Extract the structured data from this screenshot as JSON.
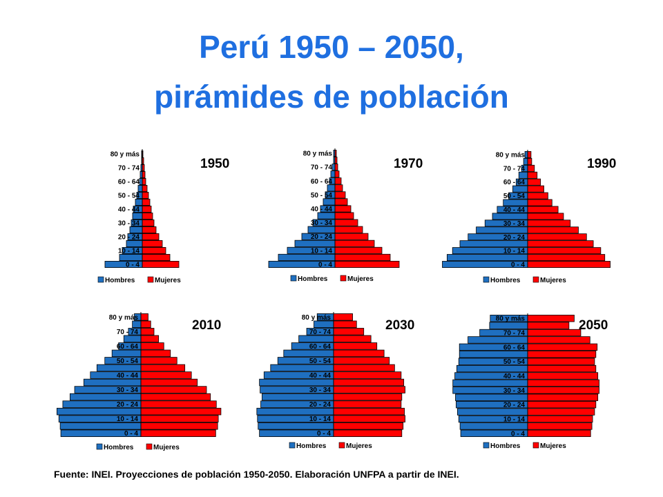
{
  "title_line1": "Perú 1950 – 2050,",
  "title_line2": "pirámides de población",
  "source": "Fuente: INEI. Proyecciones de población 1950-2050. Elaboración UNFPA a partir de INEI.",
  "colors": {
    "hombres": "#1f6fc0",
    "mujeres": "#ff0000",
    "title": "#1f6fe0"
  },
  "chart_data": [
    {
      "type": "bar",
      "title": "1950",
      "legend": [
        "Hombres",
        "Mujeres"
      ],
      "tick_labels": [
        "0 -  4",
        "10 - 14",
        "20 - 24",
        "30 - 34",
        "40 - 44",
        "50 - 54",
        "60 - 64",
        "70 - 74",
        "80 y más"
      ],
      "series": [
        {
          "name": "Hombres",
          "values": [
            54,
            33,
            29,
            23,
            21,
            18,
            16,
            14,
            13,
            10,
            8,
            6,
            4,
            3,
            2,
            1,
            1
          ]
        },
        {
          "name": "Mujeres",
          "values": [
            53,
            40,
            34,
            29,
            24,
            20,
            17,
            15,
            13,
            11,
            9,
            7,
            5,
            4,
            3,
            2,
            1
          ]
        }
      ]
    },
    {
      "type": "bar",
      "title": "1970",
      "legend": [
        "Hombres",
        "Mujeres"
      ],
      "tick_labels": [
        "0 -  4",
        "10 - 14",
        "20 - 24",
        "30 - 34",
        "40 - 44",
        "50 - 54",
        "60 - 64",
        "70 - 74",
        "80 y más"
      ],
      "series": [
        {
          "name": "Hombres",
          "values": [
            96,
            82,
            69,
            58,
            48,
            39,
            32,
            25,
            21,
            17,
            14,
            11,
            8,
            6,
            4,
            2,
            2
          ]
        },
        {
          "name": "Mujeres",
          "values": [
            93,
            80,
            68,
            57,
            48,
            40,
            33,
            27,
            23,
            18,
            15,
            11,
            9,
            6,
            4,
            3,
            2
          ]
        }
      ]
    },
    {
      "type": "bar",
      "title": "1990",
      "legend": [
        "Hombres",
        "Mujeres"
      ],
      "tick_labels": [
        "0 -  4",
        "10 - 14",
        "20 - 24",
        "30 - 34",
        "40 - 44",
        "50 - 54",
        "60 - 64",
        "70 - 74",
        "80 y más"
      ],
      "series": [
        {
          "name": "Hombres",
          "values": [
            126,
            119,
            111,
            100,
            88,
            76,
            63,
            52,
            45,
            36,
            28,
            22,
            17,
            13,
            9,
            6,
            4
          ]
        },
        {
          "name": "Mujeres",
          "values": [
            122,
            114,
            108,
            97,
            87,
            75,
            63,
            53,
            45,
            36,
            30,
            24,
            19,
            14,
            10,
            6,
            5
          ]
        }
      ]
    },
    {
      "type": "bar",
      "title": "2010",
      "legend": [
        "Hombres",
        "Mujeres"
      ],
      "tick_labels": [
        "0 -  4",
        "10 - 14",
        "20 - 24",
        "30 - 34",
        "40 - 44",
        "50 - 54",
        "60 - 64",
        "70 - 74",
        "80 y más"
      ],
      "series": [
        {
          "name": "Hombres",
          "values": [
            122,
            123,
            125,
            128,
            119,
            108,
            101,
            87,
            77,
            67,
            55,
            44,
            34,
            26,
            19,
            13,
            10
          ]
        },
        {
          "name": "Mujeres",
          "values": [
            114,
            117,
            118,
            122,
            115,
            106,
            100,
            86,
            77,
            67,
            55,
            45,
            35,
            27,
            20,
            15,
            11
          ]
        }
      ]
    },
    {
      "type": "bar",
      "title": "2030",
      "legend": [
        "Hombres",
        "Mujeres"
      ],
      "tick_labels": [
        "0 -  4",
        "10 - 14",
        "20 - 24",
        "30 - 34",
        "40 - 44",
        "50 - 54",
        "60 - 64",
        "70 - 74",
        "80 y más"
      ],
      "series": [
        {
          "name": "Hombres",
          "values": [
            113,
            115,
            116,
            117,
            111,
            109,
            112,
            113,
            106,
            96,
            85,
            76,
            64,
            53,
            41,
            30,
            25
          ]
        },
        {
          "name": "Mujeres",
          "values": [
            104,
            106,
            109,
            108,
            103,
            104,
            109,
            107,
            103,
            93,
            85,
            77,
            66,
            57,
            46,
            35,
            29
          ]
        }
      ]
    },
    {
      "type": "bar",
      "title": "2050",
      "legend": [
        "Hombres",
        "Mujeres"
      ],
      "tick_labels": [
        "0 -  4",
        "10 - 14",
        "20 - 24",
        "30 - 34",
        "40 - 44",
        "50 - 54",
        "60 - 64",
        "70 - 74",
        "80 y más"
      ],
      "series": [
        {
          "name": "Hombres",
          "values": [
            102,
            103,
            105,
            107,
            109,
            110,
            114,
            114,
            111,
            108,
            105,
            104,
            104,
            91,
            73,
            58,
            57
          ]
        },
        {
          "name": "Mujeres",
          "values": [
            96,
            98,
            99,
            102,
            104,
            107,
            109,
            109,
            107,
            104,
            102,
            104,
            106,
            95,
            81,
            63,
            71
          ]
        }
      ]
    }
  ]
}
